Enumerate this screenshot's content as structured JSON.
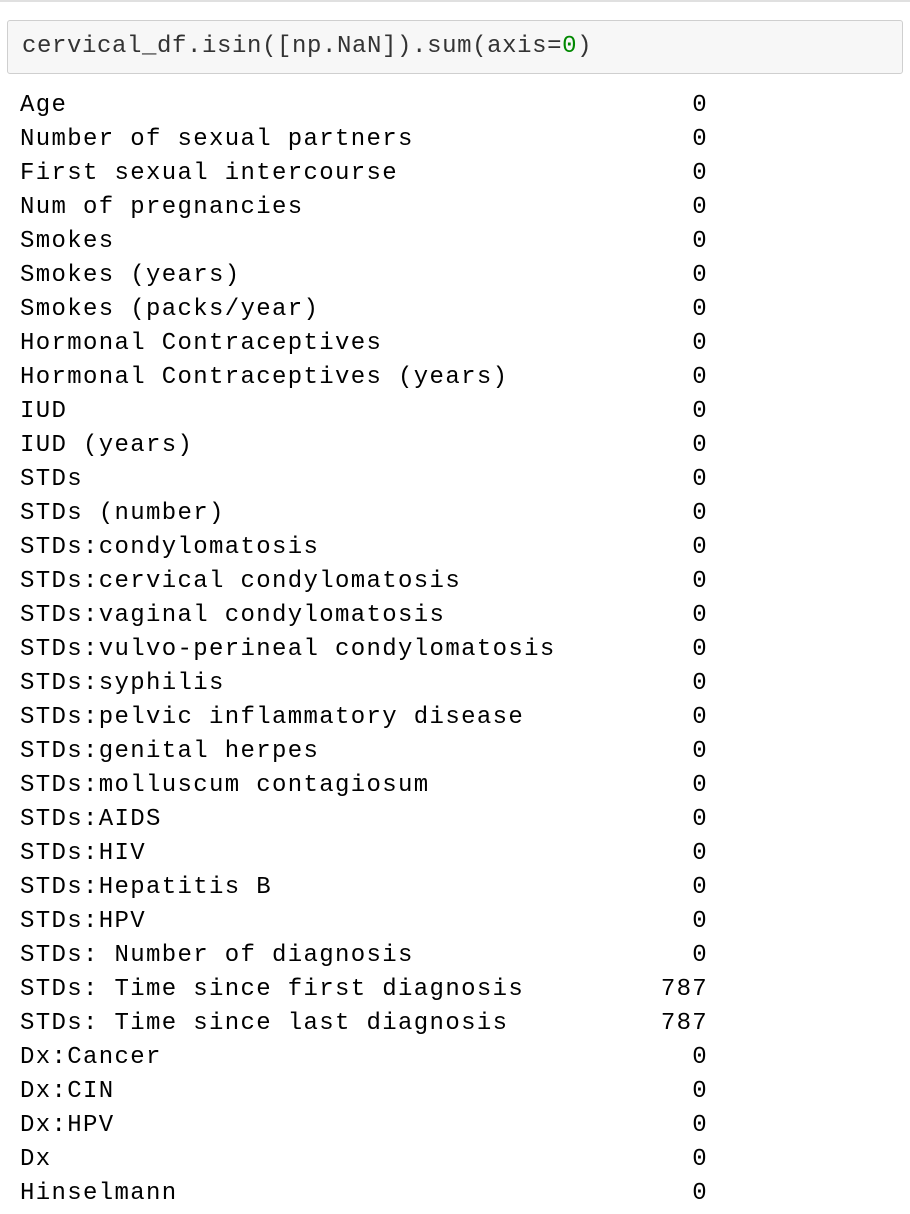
{
  "input_cell": {
    "code_prefix": "cervical_df.isin([np.NaN]).sum(axis=",
    "code_number": "0",
    "code_suffix": ")"
  },
  "output": {
    "rows": [
      {
        "label": "Age",
        "value": "0"
      },
      {
        "label": "Number of sexual partners",
        "value": "0"
      },
      {
        "label": "First sexual intercourse",
        "value": "0"
      },
      {
        "label": "Num of pregnancies",
        "value": "0"
      },
      {
        "label": "Smokes",
        "value": "0"
      },
      {
        "label": "Smokes (years)",
        "value": "0"
      },
      {
        "label": "Smokes (packs/year)",
        "value": "0"
      },
      {
        "label": "Hormonal Contraceptives",
        "value": "0"
      },
      {
        "label": "Hormonal Contraceptives (years)",
        "value": "0"
      },
      {
        "label": "IUD",
        "value": "0"
      },
      {
        "label": "IUD (years)",
        "value": "0"
      },
      {
        "label": "STDs",
        "value": "0"
      },
      {
        "label": "STDs (number)",
        "value": "0"
      },
      {
        "label": "STDs:condylomatosis",
        "value": "0"
      },
      {
        "label": "STDs:cervical condylomatosis",
        "value": "0"
      },
      {
        "label": "STDs:vaginal condylomatosis",
        "value": "0"
      },
      {
        "label": "STDs:vulvo-perineal condylomatosis",
        "value": "0"
      },
      {
        "label": "STDs:syphilis",
        "value": "0"
      },
      {
        "label": "STDs:pelvic inflammatory disease",
        "value": "0"
      },
      {
        "label": "STDs:genital herpes",
        "value": "0"
      },
      {
        "label": "STDs:molluscum contagiosum",
        "value": "0"
      },
      {
        "label": "STDs:AIDS",
        "value": "0"
      },
      {
        "label": "STDs:HIV",
        "value": "0"
      },
      {
        "label": "STDs:Hepatitis B",
        "value": "0"
      },
      {
        "label": "STDs:HPV",
        "value": "0"
      },
      {
        "label": "STDs: Number of diagnosis",
        "value": "0"
      },
      {
        "label": "STDs: Time since first diagnosis",
        "value": "787"
      },
      {
        "label": "STDs: Time since last diagnosis",
        "value": "787"
      },
      {
        "label": "Dx:Cancer",
        "value": "0"
      },
      {
        "label": "Dx:CIN",
        "value": "0"
      },
      {
        "label": "Dx:HPV",
        "value": "0"
      },
      {
        "label": "Dx",
        "value": "0"
      },
      {
        "label": "Hinselmann",
        "value": "0"
      }
    ]
  },
  "colors": {
    "input_background": "#f7f7f7",
    "input_border": "#cfcfcf",
    "code_text": "#333333",
    "number_literal": "#008800",
    "output_text": "#000000"
  }
}
